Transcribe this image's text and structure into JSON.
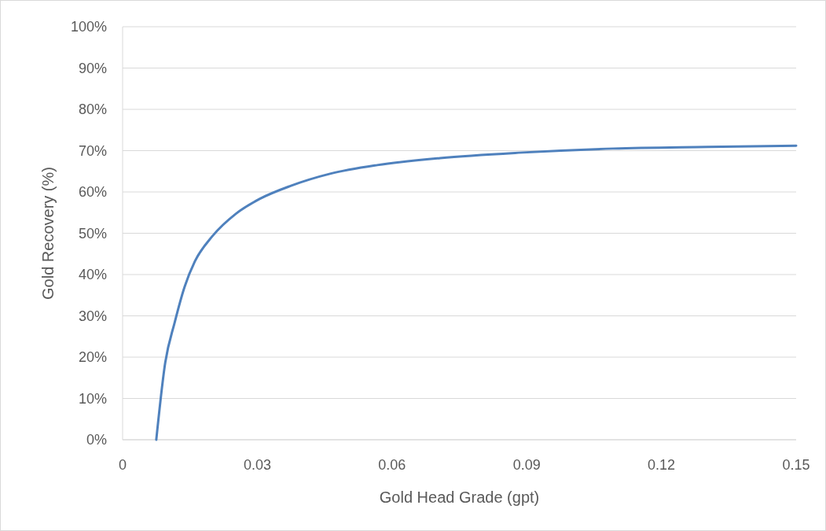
{
  "chart_data": {
    "type": "line",
    "xlabel": "Gold Head Grade (gpt)",
    "ylabel": "Gold Recovery (%)",
    "x": [
      0.0075,
      0.0095,
      0.0116,
      0.0138,
      0.0161,
      0.02,
      0.0252,
      0.0305,
      0.0375,
      0.0462,
      0.0567,
      0.0707,
      0.0882,
      0.1092,
      0.1302,
      0.15
    ],
    "series": [
      {
        "color": "#4f81bd",
        "values": [
          0,
          18.7,
          28.4,
          37,
          43.2,
          49.3,
          54.7,
          58.3,
          61.5,
          64.4,
          66.5,
          68.2,
          69.5,
          70.5,
          70.9,
          71.2
        ]
      }
    ],
    "xlim": [
      0,
      0.15
    ],
    "xticks": [
      0,
      0.03,
      0.06,
      0.09,
      0.12,
      0.15
    ],
    "ylim": [
      0,
      100
    ],
    "yticks": [
      {
        "value": 0,
        "label": "0%"
      },
      {
        "value": 10,
        "label": "10%"
      },
      {
        "value": 20,
        "label": "20%"
      },
      {
        "value": 30,
        "label": "30%"
      },
      {
        "value": 40,
        "label": "40%"
      },
      {
        "value": 50,
        "label": "50%"
      },
      {
        "value": 60,
        "label": "60%"
      },
      {
        "value": 70,
        "label": "70%"
      },
      {
        "value": 80,
        "label": "80%"
      },
      {
        "value": 90,
        "label": "90%"
      },
      {
        "value": 100,
        "label": "100%"
      }
    ],
    "grid": "y",
    "marker": "none",
    "line_style": "solid"
  }
}
